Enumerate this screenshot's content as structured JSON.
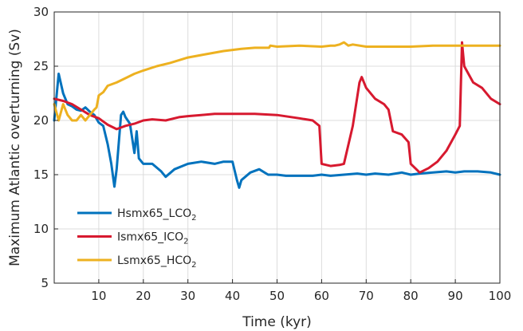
{
  "chart_data": {
    "type": "line",
    "xlabel": "Time (kyr)",
    "ylabel": "Maximum Atlantic overturning (Sv)",
    "xlim": [
      0,
      100
    ],
    "ylim": [
      5,
      30
    ],
    "xticks": [
      "10",
      "20",
      "30",
      "40",
      "50",
      "60",
      "70",
      "80",
      "90",
      "100"
    ],
    "yticks": [
      "5",
      "10",
      "15",
      "20",
      "25",
      "30"
    ],
    "grid": true,
    "legend_position": "lower-left",
    "series": [
      {
        "name_main": "Hsmx65_LCO",
        "name_sub": "2",
        "color": "#0072BD",
        "x": [
          0,
          1,
          2,
          3,
          4,
          5,
          6,
          7,
          8,
          9,
          10,
          11,
          12,
          12.8,
          13.5,
          14,
          15,
          15.5,
          16,
          17,
          18,
          18.5,
          19,
          20,
          22,
          24,
          25,
          27,
          30,
          33,
          36,
          38,
          40,
          41,
          41.5,
          42,
          44,
          46,
          48,
          50,
          52,
          55,
          58,
          60,
          62,
          65,
          68,
          70,
          72,
          75,
          78,
          80,
          82,
          85,
          88,
          90,
          92,
          95,
          98,
          100
        ],
        "y": [
          20,
          24.3,
          22.5,
          21.5,
          21.3,
          21.0,
          20.9,
          21.2,
          20.8,
          20.5,
          19.8,
          19.5,
          17.8,
          16.0,
          13.9,
          15.5,
          20.5,
          20.8,
          20.3,
          19.7,
          17.0,
          19.0,
          16.5,
          16.0,
          16.0,
          15.3,
          14.8,
          15.5,
          16.0,
          16.2,
          16.0,
          16.2,
          16.2,
          14.5,
          13.8,
          14.5,
          15.2,
          15.5,
          15.0,
          15.0,
          14.9,
          14.9,
          14.9,
          15.0,
          14.9,
          15.0,
          15.1,
          15.0,
          15.1,
          15.0,
          15.2,
          15.0,
          15.1,
          15.2,
          15.3,
          15.2,
          15.3,
          15.3,
          15.2,
          15.0
        ]
      },
      {
        "name_main": "Ismx65_ICO",
        "name_sub": "2",
        "color": "#D7192F",
        "x": [
          0,
          2,
          4,
          6,
          8,
          10,
          12,
          14,
          16,
          18,
          20,
          22,
          25,
          28,
          30,
          33,
          36,
          40,
          45,
          50,
          55,
          58,
          59.5,
          60,
          62,
          64,
          65,
          67,
          68.5,
          69,
          70,
          72,
          74,
          75,
          76,
          78,
          79.5,
          80,
          82,
          84,
          86,
          88,
          90,
          91,
          91.5,
          92,
          94,
          96,
          98,
          100
        ],
        "y": [
          22.0,
          21.8,
          21.5,
          21.0,
          20.5,
          20.2,
          19.6,
          19.2,
          19.5,
          19.7,
          20.0,
          20.1,
          20.0,
          20.3,
          20.4,
          20.5,
          20.6,
          20.6,
          20.6,
          20.5,
          20.2,
          20.0,
          19.5,
          16.0,
          15.8,
          15.9,
          16.0,
          19.5,
          23.5,
          24.0,
          23.0,
          22.0,
          21.5,
          21.0,
          19.0,
          18.7,
          18.0,
          16.0,
          15.2,
          15.6,
          16.2,
          17.2,
          18.7,
          19.5,
          27.2,
          25.0,
          23.5,
          23.0,
          22.0,
          21.5
        ]
      },
      {
        "name_main": "Lsmx65_HCO",
        "name_sub": "2",
        "color": "#EDB120",
        "x": [
          0,
          1,
          2,
          3,
          4,
          5,
          6,
          7,
          8,
          9,
          9.5,
          10,
          11,
          12,
          14,
          16,
          18,
          20,
          23,
          26,
          30,
          34,
          38,
          42,
          45,
          47,
          48.2,
          48.5,
          50,
          55,
          60,
          62,
          63,
          64,
          65,
          66,
          67,
          70,
          75,
          80,
          85,
          90,
          95,
          100
        ],
        "y": [
          21.5,
          20.0,
          21.5,
          20.5,
          20.0,
          20.0,
          20.5,
          20.0,
          20.5,
          21.0,
          21.2,
          22.3,
          22.6,
          23.2,
          23.5,
          23.9,
          24.3,
          24.6,
          25.0,
          25.3,
          25.8,
          26.1,
          26.4,
          26.6,
          26.7,
          26.7,
          26.7,
          26.9,
          26.8,
          26.9,
          26.8,
          26.9,
          26.9,
          27.0,
          27.2,
          26.9,
          27.0,
          26.8,
          26.8,
          26.8,
          26.9,
          26.9,
          26.9,
          26.9
        ]
      }
    ]
  }
}
